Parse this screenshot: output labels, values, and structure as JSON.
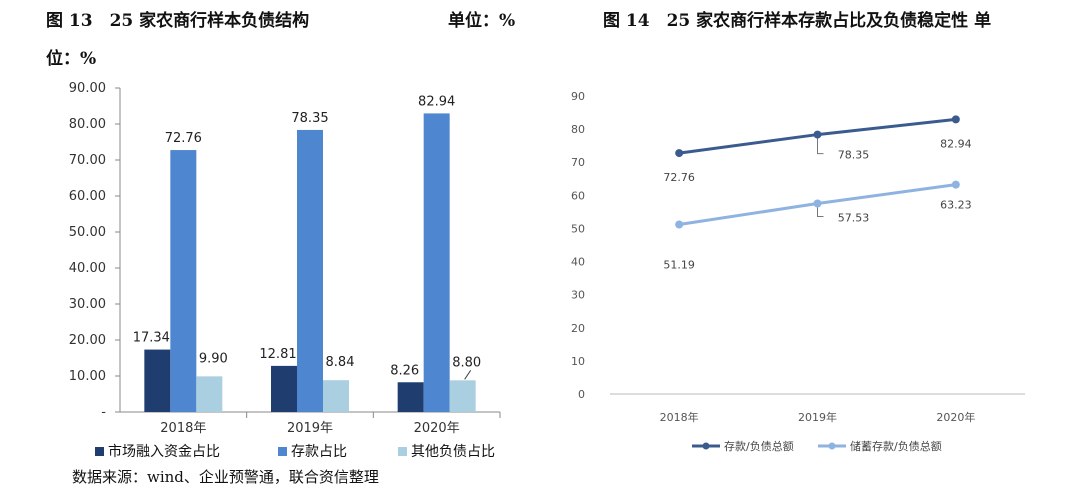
{
  "titles": {
    "left_title": "图 13　25 家农商行样本负债结构",
    "left_unit": "单位：%",
    "left_unit_wrap": "位：%",
    "right_title": "图 14　25 家农商行样本存款占比及负债稳定性 单"
  },
  "source": "数据来源：wind、企业预警通，联合资信整理",
  "colors": {
    "series1": "#1f3d6e",
    "series2": "#4f86d0",
    "series3": "#a9cfe0",
    "line1": "#3b5b8e",
    "line2": "#8fb3e0"
  },
  "chart_data": [
    {
      "type": "bar",
      "title": "25 家农商行样本负债结构",
      "categories": [
        "2018年",
        "2019年",
        "2020年"
      ],
      "series": [
        {
          "name": "市场融入资金占比",
          "values": [
            17.34,
            12.81,
            8.26
          ],
          "labels": [
            "17.34",
            "12.81",
            "8.26"
          ]
        },
        {
          "name": "存款占比",
          "values": [
            72.76,
            78.35,
            82.94
          ],
          "labels": [
            "72.76",
            "78.35",
            "82.94"
          ]
        },
        {
          "name": "其他负债占比",
          "values": [
            9.9,
            8.84,
            8.8
          ],
          "labels": [
            "9.90",
            "8.84",
            "8.80"
          ]
        }
      ],
      "ylim": [
        0,
        90
      ],
      "yticks": [
        "-",
        "10.00",
        "20.00",
        "30.00",
        "40.00",
        "50.00",
        "60.00",
        "70.00",
        "80.00",
        "90.00"
      ],
      "legend_position": "bottom",
      "grid": false
    },
    {
      "type": "line",
      "title": "25 家农商行样本存款占比及负债稳定性",
      "categories": [
        "2018年",
        "2019年",
        "2020年"
      ],
      "series": [
        {
          "name": "存款/负债总额",
          "values": [
            72.76,
            78.35,
            82.94
          ],
          "labels": [
            "72.76",
            "78.35",
            "82.94"
          ]
        },
        {
          "name": "储蓄存款/负债总额",
          "values": [
            51.19,
            57.53,
            63.23
          ],
          "labels": [
            "51.19",
            "57.53",
            "63.23"
          ]
        }
      ],
      "ylim": [
        0,
        90
      ],
      "yticks": [
        "0",
        "10",
        "20",
        "30",
        "40",
        "50",
        "60",
        "70",
        "80",
        "90"
      ],
      "legend_position": "bottom",
      "grid": false
    }
  ]
}
